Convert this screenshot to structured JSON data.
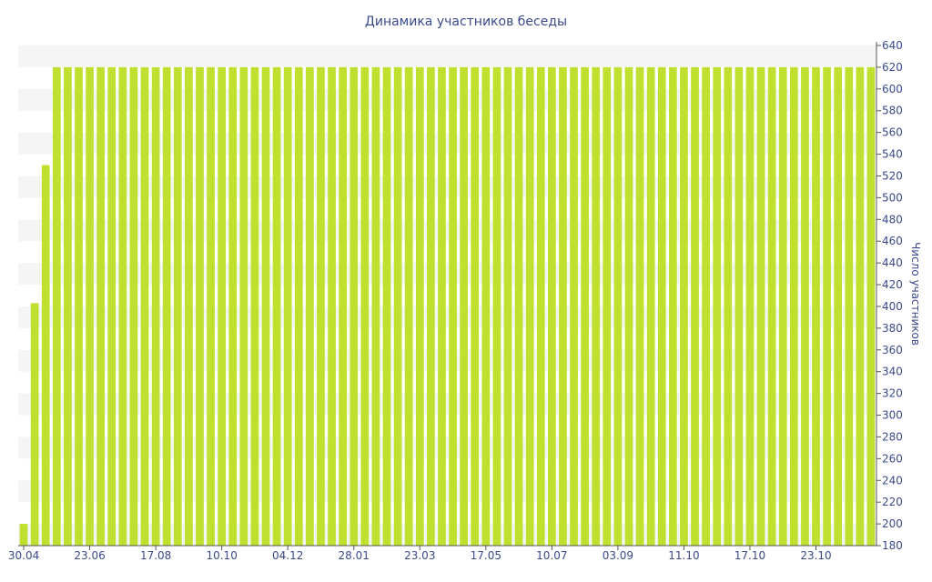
{
  "chart_data": {
    "type": "bar",
    "title": "Динамика участников беседы",
    "xlabel": "",
    "ylabel": "Число участников",
    "ylim": [
      180,
      640
    ],
    "y_ticks": [
      180,
      200,
      220,
      240,
      260,
      280,
      300,
      320,
      340,
      360,
      380,
      400,
      420,
      440,
      460,
      480,
      500,
      520,
      540,
      560,
      580,
      600,
      620,
      640
    ],
    "x_tick_labels": [
      "30.04",
      "23.06",
      "17.08",
      "10.10",
      "04.12",
      "28.01",
      "23.03",
      "17.05",
      "10.07",
      "03.09",
      "11.10",
      "17.10",
      "23.10"
    ],
    "x_tick_bar_index": [
      0,
      6,
      12,
      18,
      24,
      30,
      36,
      42,
      48,
      54,
      60,
      66,
      72
    ],
    "values": [
      200,
      403,
      530,
      620,
      620,
      620,
      620,
      620,
      620,
      620,
      620,
      620,
      620,
      620,
      620,
      620,
      620,
      620,
      620,
      620,
      620,
      620,
      620,
      620,
      620,
      620,
      620,
      620,
      620,
      620,
      620,
      620,
      620,
      620,
      620,
      620,
      620,
      620,
      620,
      620,
      620,
      620,
      620,
      620,
      620,
      620,
      620,
      620,
      620,
      620,
      620,
      620,
      620,
      620,
      620,
      620,
      620,
      620,
      620,
      620,
      620,
      620,
      620,
      620,
      620,
      620,
      620,
      620,
      620,
      620,
      620,
      620,
      620,
      620,
      620,
      620,
      620,
      620
    ],
    "grid": "alternating horizontal bands",
    "y_axis_position": "right",
    "colors": {
      "bar": "#bfe02f",
      "band": "#f5f5f5",
      "text": "#3a4a8c",
      "axis": "#555555"
    }
  }
}
